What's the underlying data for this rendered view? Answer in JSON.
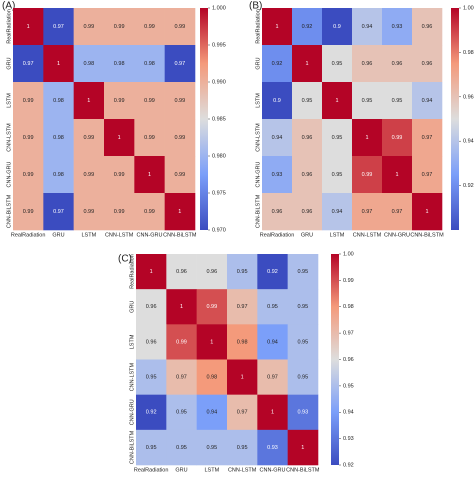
{
  "chart_data": [
    {
      "type": "heatmap",
      "title": "(A)",
      "colormap": "coolwarm",
      "categories": [
        "RealRadiation",
        "GRU",
        "LSTM",
        "CNN-LSTM",
        "CNN-GRU",
        "CNN-BiLSTM"
      ],
      "values": [
        [
          1,
          0.97,
          0.99,
          0.99,
          0.99,
          0.99
        ],
        [
          0.97,
          1,
          0.98,
          0.98,
          0.98,
          0.97
        ],
        [
          0.99,
          0.98,
          1,
          0.99,
          0.99,
          0.99
        ],
        [
          0.99,
          0.98,
          0.99,
          1,
          0.99,
          0.99
        ],
        [
          0.99,
          0.98,
          0.99,
          0.99,
          1,
          0.99
        ],
        [
          0.99,
          0.97,
          0.99,
          0.99,
          0.99,
          1
        ]
      ],
      "zlim": [
        0.97,
        1.0
      ],
      "zticks": [
        {
          "value": 0.97,
          "label": "0.970"
        },
        0.975,
        {
          "value": 0.98,
          "label": "0.980"
        },
        0.985,
        {
          "value": 0.99,
          "label": "0.990"
        },
        0.995,
        {
          "value": 1.0,
          "label": "1.000"
        }
      ]
    },
    {
      "type": "heatmap",
      "title": "(B)",
      "colormap": "coolwarm",
      "categories": [
        "RealRadiation",
        "GRU",
        "LSTM",
        "CNN-LSTM",
        "CNN-GRU",
        "CNN-BiLSTM"
      ],
      "values": [
        [
          1,
          0.92,
          0.9,
          0.94,
          0.93,
          0.96
        ],
        [
          0.92,
          1,
          0.95,
          0.96,
          0.96,
          0.96
        ],
        [
          0.9,
          0.95,
          1,
          0.95,
          0.95,
          0.94
        ],
        [
          0.94,
          0.96,
          0.95,
          1,
          0.99,
          0.97
        ],
        [
          0.93,
          0.96,
          0.95,
          0.99,
          1,
          0.97
        ],
        [
          0.96,
          0.96,
          0.94,
          0.97,
          0.97,
          1
        ]
      ],
      "zlim": [
        0.9,
        1.0
      ],
      "zticks": [
        0.92,
        0.94,
        0.96,
        0.98,
        {
          "value": 1.0,
          "label": "1.00"
        }
      ]
    },
    {
      "type": "heatmap",
      "title": "(C)",
      "colormap": "coolwarm",
      "categories": [
        "RealRadiation",
        "GRU",
        "LSTM",
        "CNN-LSTM",
        "CNN-GRU",
        "CNN-BiLSTM"
      ],
      "values": [
        [
          1,
          0.96,
          0.96,
          0.95,
          0.92,
          0.95
        ],
        [
          0.96,
          1,
          0.99,
          0.97,
          0.95,
          0.95
        ],
        [
          0.96,
          0.99,
          1,
          0.98,
          0.94,
          0.95
        ],
        [
          0.95,
          0.97,
          0.98,
          1,
          0.97,
          0.95
        ],
        [
          0.92,
          0.95,
          0.94,
          0.97,
          1,
          0.93
        ],
        [
          0.95,
          0.95,
          0.95,
          0.95,
          0.93,
          1
        ]
      ],
      "zlim": [
        0.92,
        1.0
      ],
      "zticks": [
        0.92,
        0.93,
        0.94,
        0.95,
        0.96,
        0.97,
        0.98,
        0.99,
        {
          "value": 1.0,
          "label": "1.00"
        }
      ]
    }
  ]
}
